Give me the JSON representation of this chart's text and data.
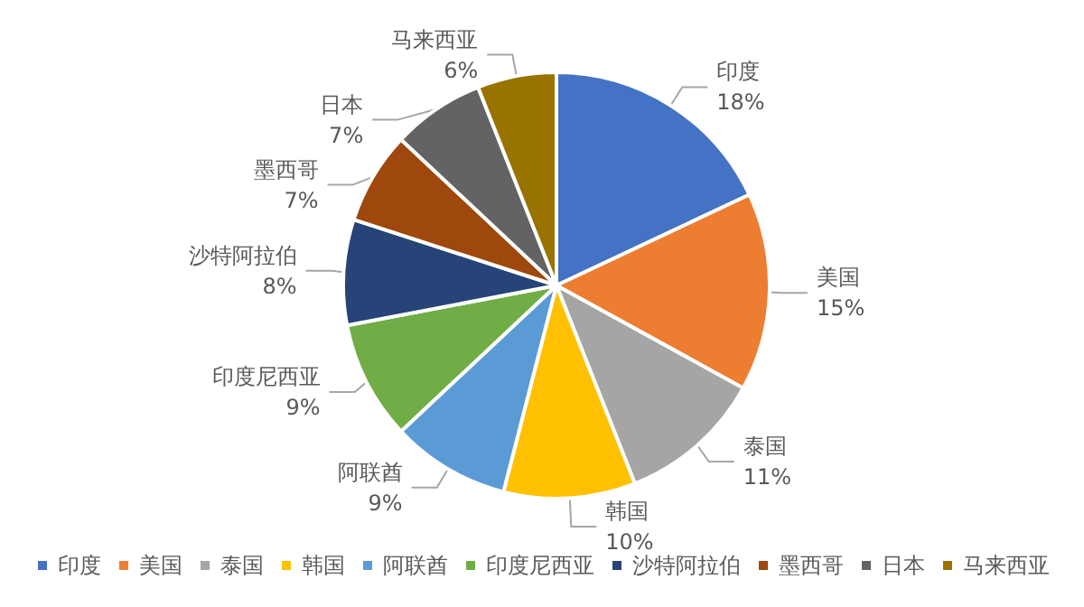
{
  "chart_data": {
    "type": "pie",
    "categories": [
      "印度",
      "美国",
      "泰国",
      "韩国",
      "阿联酋",
      "印度尼西亚",
      "沙特阿拉伯",
      "墨西哥",
      "日本",
      "马来西亚"
    ],
    "values": [
      18,
      15,
      11,
      10,
      9,
      9,
      8,
      7,
      7,
      6
    ],
    "colors": [
      "#4472c4",
      "#ed7d31",
      "#a5a5a5",
      "#ffc000",
      "#5b9bd5",
      "#70ad47",
      "#264478",
      "#9e480e",
      "#636363",
      "#997300"
    ],
    "value_labels": [
      "18%",
      "15%",
      "11%",
      "10%",
      "9%",
      "9%",
      "8%",
      "7%",
      "7%",
      "6%"
    ],
    "legend": "bottom"
  }
}
